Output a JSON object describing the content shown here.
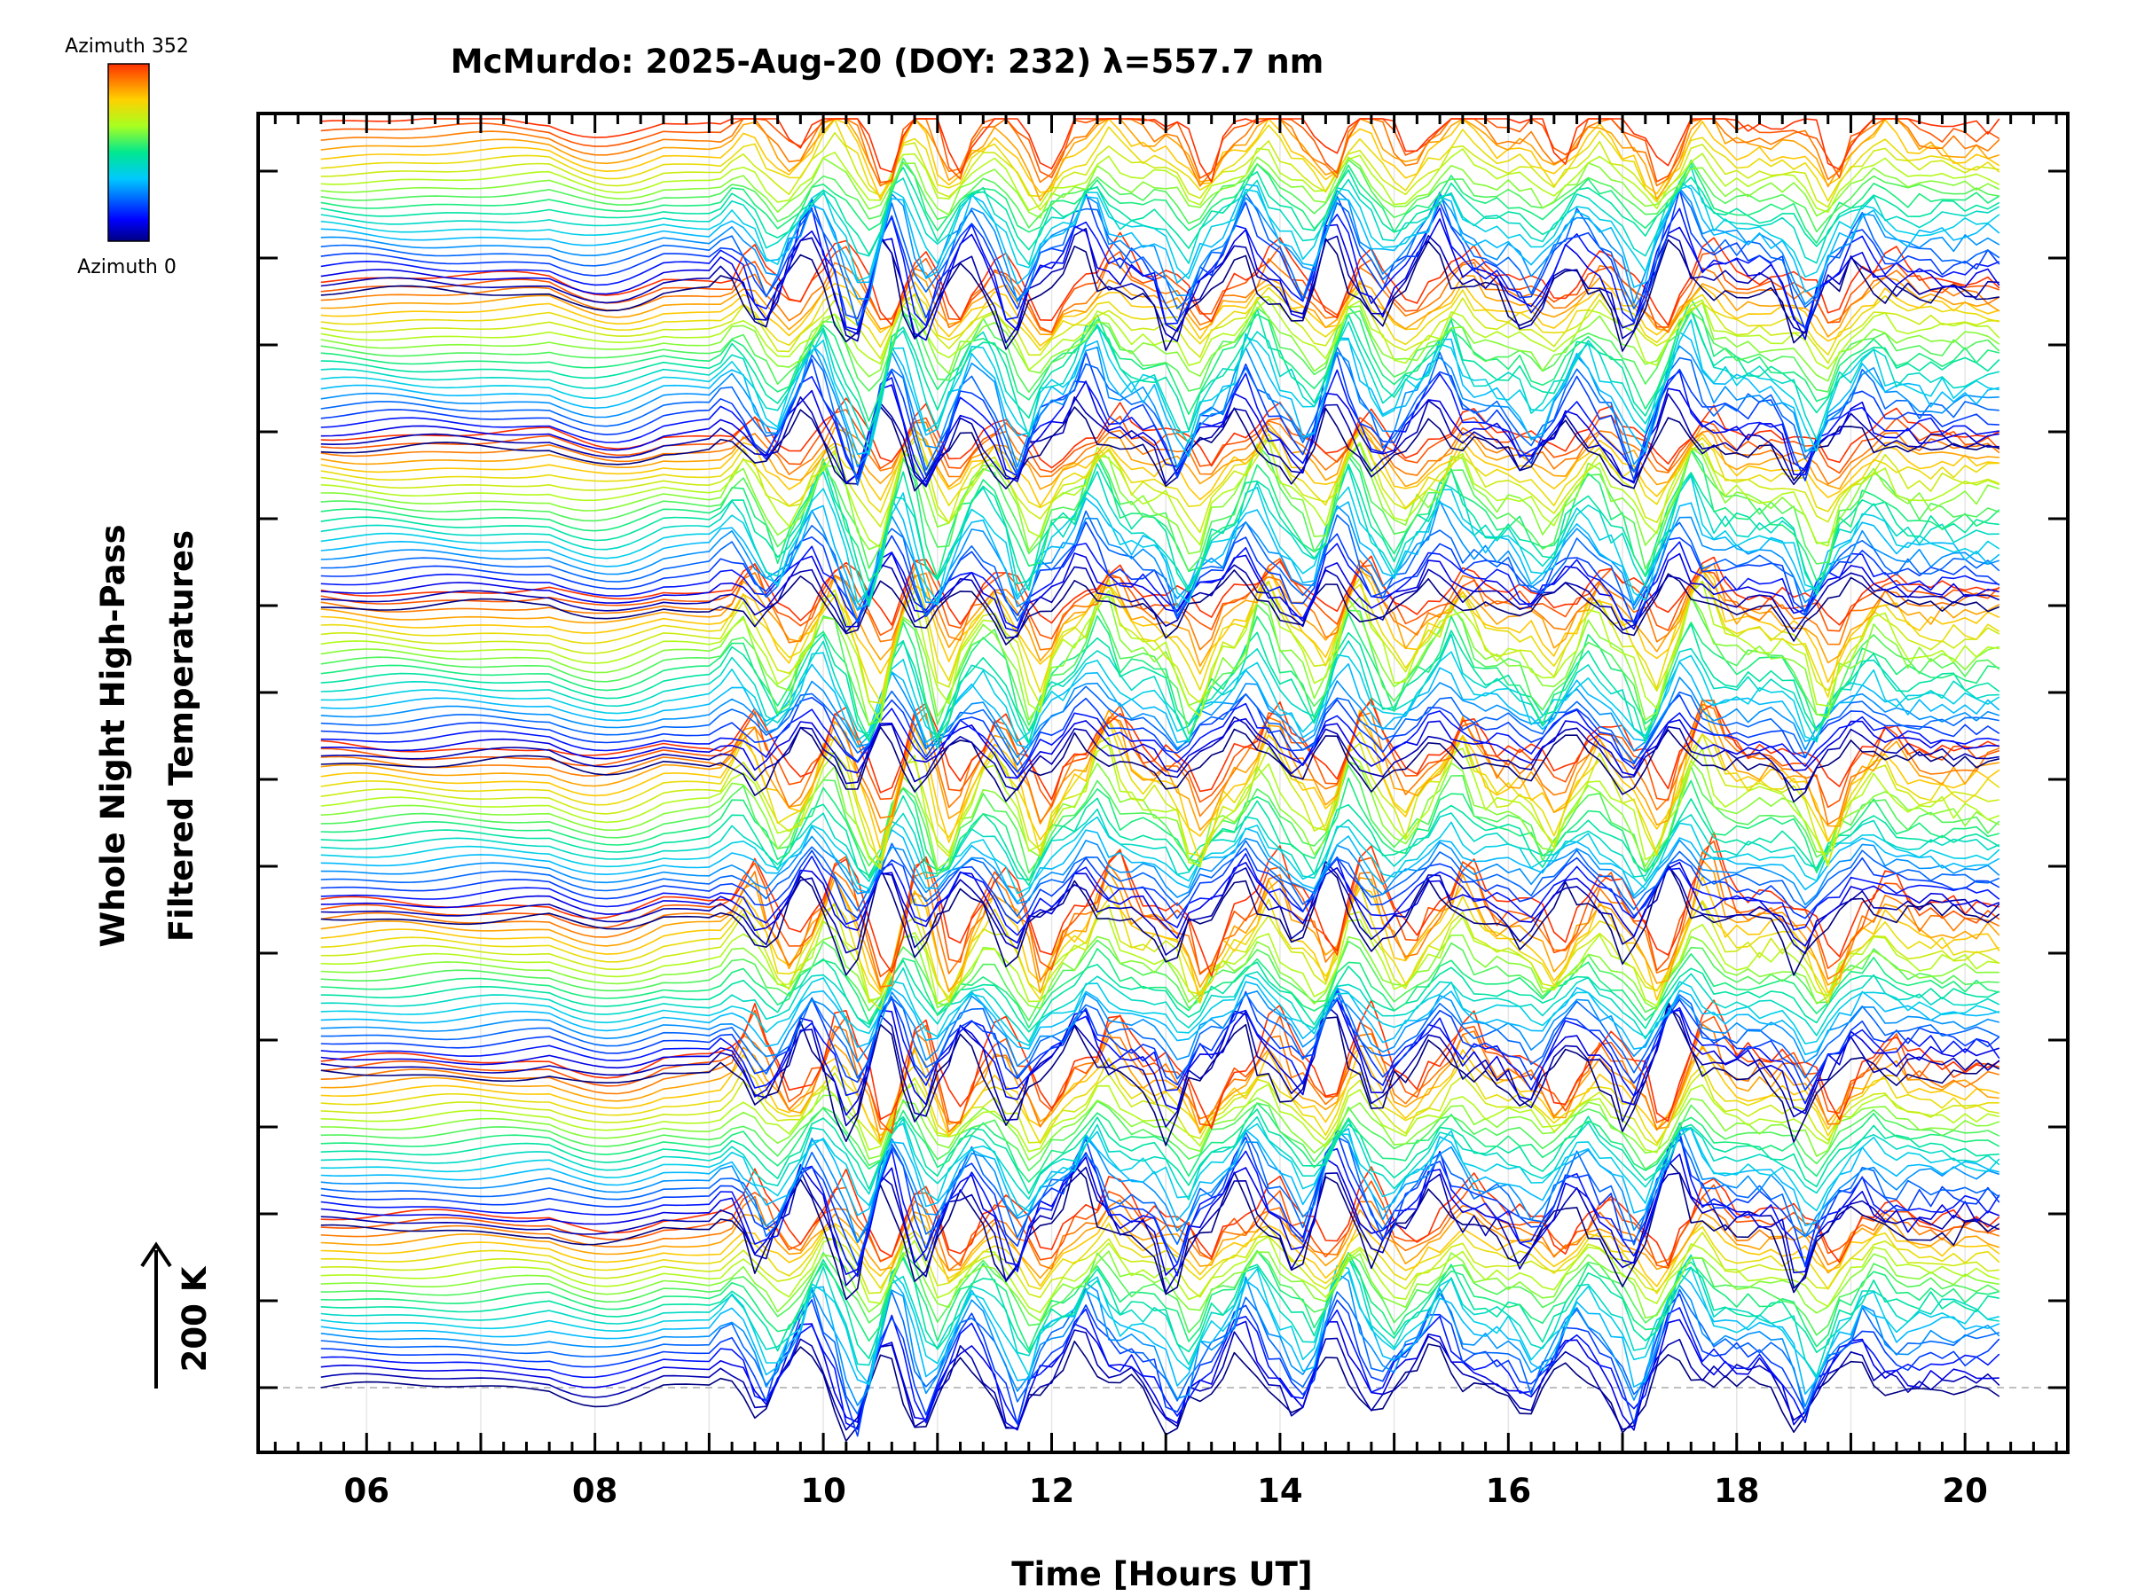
{
  "chart_data": {
    "type": "line",
    "title": "McMurdo: 2025-Aug-20 (DOY: 232) λ=557.7 nm",
    "xlabel": "Time [Hours UT]",
    "ylabel_lines": [
      "Whole Night High-Pass",
      "Filtered Temperatures"
    ],
    "scale_label": "200 K",
    "colorbar": {
      "top_label": "Azimuth 352",
      "bottom_label": "Azimuth 0"
    },
    "xlim": [
      5.05,
      20.9
    ],
    "x_ticks": [
      "06",
      "08",
      "10",
      "12",
      "14",
      "16",
      "18",
      "20"
    ],
    "x_tick_values": [
      6,
      8,
      10,
      12,
      14,
      16,
      18,
      20
    ],
    "x_start": 5.6,
    "x_end": 20.3,
    "sample_interval_hours": 0.1,
    "stack_count": 8,
    "stack_spacing_k": 200,
    "azimuths_per_stack": 22,
    "azimuth_range_deg": [
      0,
      352
    ],
    "activity_start_hours": 9.0,
    "feature_times_hours": [
      9.2,
      9.6,
      10.0,
      10.4,
      10.7,
      11.0,
      11.4,
      11.8,
      12.4,
      13.2,
      13.8,
      14.3,
      14.6,
      15.0,
      15.5,
      16.3,
      16.7,
      17.2,
      17.6,
      18.7,
      19.2
    ]
  }
}
